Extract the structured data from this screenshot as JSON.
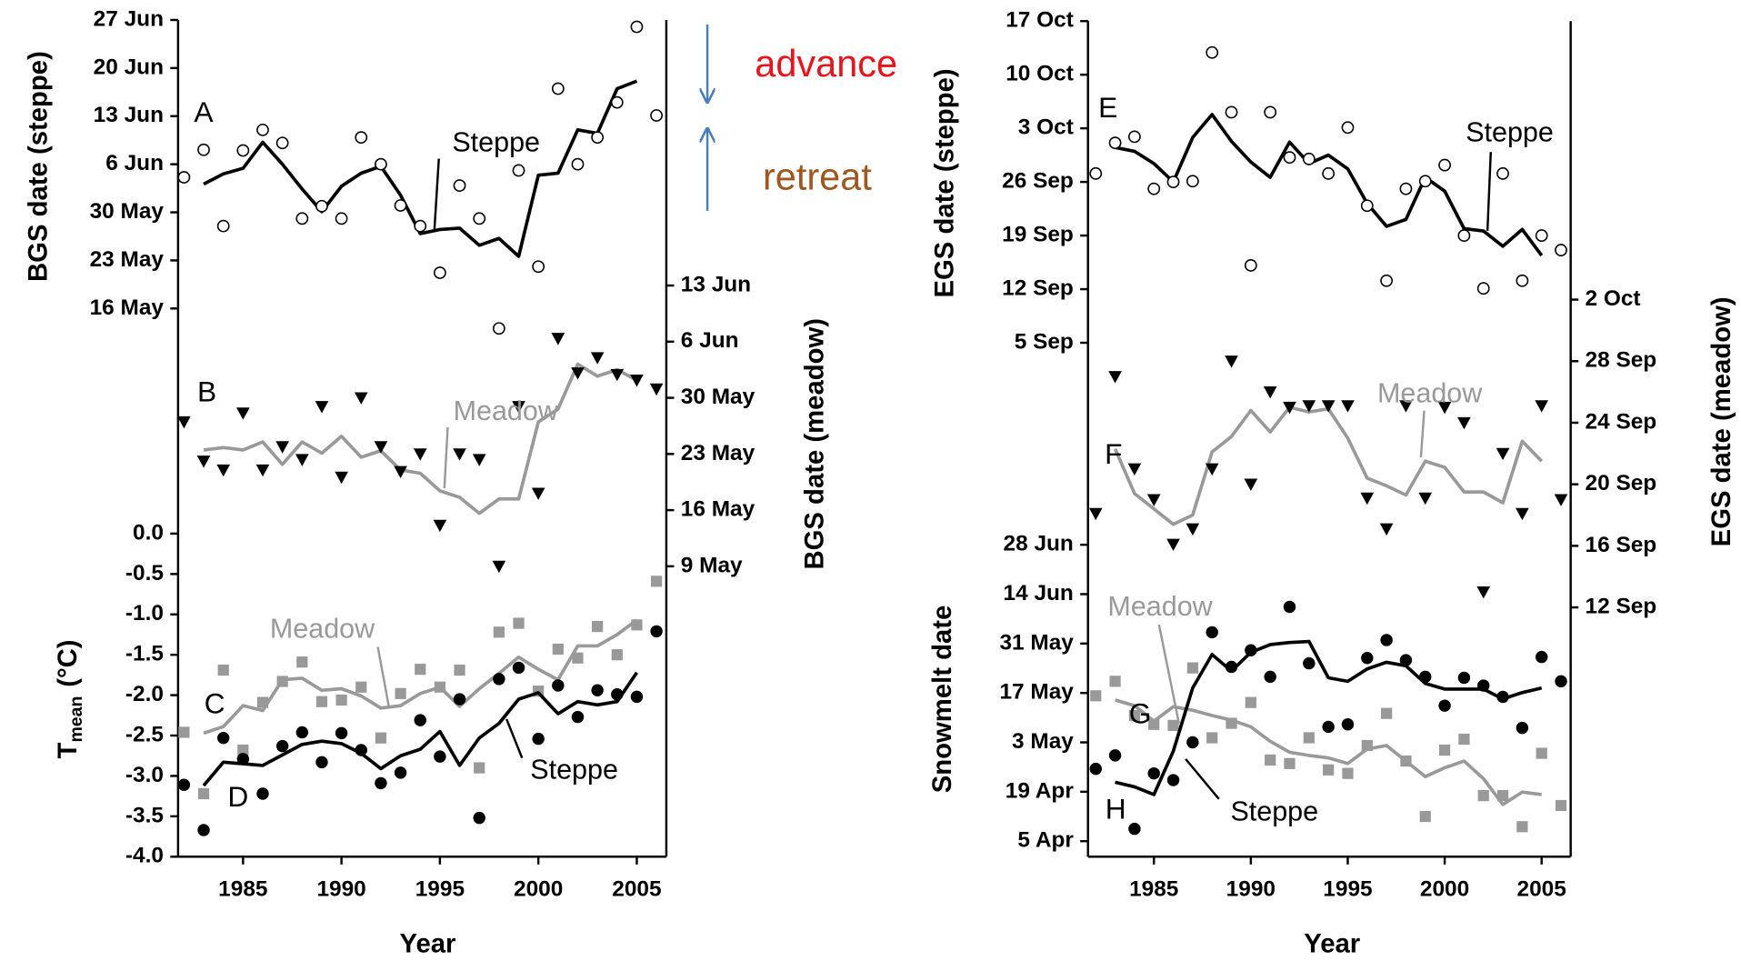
{
  "chart_data": [
    {
      "type": "line",
      "xlabel": "Year",
      "xlim": [
        1981.7,
        2006.5
      ],
      "xticks": [
        1985,
        1990,
        1995,
        2000,
        2005
      ],
      "x": [
        1982,
        1983,
        1984,
        1985,
        1986,
        1987,
        1988,
        1989,
        1990,
        1991,
        1992,
        1993,
        1994,
        1995,
        1996,
        1997,
        1998,
        1999,
        2000,
        2001,
        2002,
        2003,
        2004,
        2005,
        2006
      ],
      "axes": [
        {
          "side": "left",
          "label": "BGS date (steppe)",
          "ylim": [
            56.2,
            178
          ],
          "yticks": [
            {
              "value": 178,
              "label": "27 Jun"
            },
            {
              "value": 171,
              "label": "20 Jun"
            },
            {
              "value": 164,
              "label": "13 Jun"
            },
            {
              "value": 157,
              "label": "6 Jun"
            },
            {
              "value": 150,
              "label": "30 May"
            },
            {
              "value": 143,
              "label": "23 May"
            },
            {
              "value": 136,
              "label": "16 May"
            }
          ]
        },
        {
          "side": "right",
          "label": "BGS date (meadow)",
          "ylim": [
            92.8,
            197.1
          ],
          "yticks": [
            {
              "value": 164,
              "label": "13 Jun"
            },
            {
              "value": 157,
              "label": "6 Jun"
            },
            {
              "value": 150,
              "label": "30 May"
            },
            {
              "value": 143,
              "label": "23 May"
            },
            {
              "value": 136,
              "label": "16 May"
            },
            {
              "value": 129,
              "label": "9 May"
            }
          ]
        },
        {
          "side": "left",
          "label": "T",
          "label_sub": "mean",
          "label_unit": "(°C)",
          "ylim": [
            -4,
            6.36
          ],
          "yticks": [
            {
              "value": 0,
              "label": "0.0"
            },
            -0.5,
            {
              "value": -1,
              "label": "-1.0"
            },
            -1.5,
            {
              "value": -2,
              "label": "-2.0"
            },
            -2.5,
            {
              "value": -3,
              "label": "-3.0"
            },
            -3.5,
            {
              "value": -4,
              "label": "-4.0"
            }
          ]
        }
      ],
      "series": [
        {
          "label": "A",
          "name": "Steppe",
          "axis": 0,
          "marker": "open-circle",
          "marker_color": "#000000",
          "line_color": "#000000",
          "points": [
            155.1,
            159.1,
            148.0,
            159.0,
            162.0,
            160.1,
            149.1,
            150.9,
            149.1,
            160.9,
            157.0,
            151.0,
            148.0,
            141.2,
            153.9,
            149.1,
            133.1,
            156.1,
            142.1,
            168.0,
            157.0,
            160.9,
            166.0,
            177.0,
            164.1
          ],
          "line": [
            null,
            154.1,
            155.6,
            156.4,
            160.2,
            157.0,
            153.4,
            150.1,
            153.8,
            155.7,
            156.7,
            152.5,
            146.9,
            147.5,
            147.7,
            145.2,
            146.2,
            143.6,
            155.4,
            155.7,
            162.0,
            161.5,
            168.0,
            169.1,
            null
          ]
        },
        {
          "label": "B",
          "name": "Meadow",
          "axis": 1,
          "marker": "triangle",
          "marker_color": "#000000",
          "line_color": "#999999",
          "points": [
            147.0,
            142.1,
            141.0,
            148.1,
            141.0,
            143.9,
            142.3,
            148.9,
            140.1,
            150.0,
            143.9,
            140.8,
            143.0,
            134.1,
            143.0,
            142.3,
            129.0,
            148.9,
            138.1,
            157.4,
            153.1,
            155.0,
            152.9,
            152.2,
            151.1
          ],
          "line": [
            null,
            143.5,
            143.8,
            143.5,
            144.5,
            141.7,
            144.5,
            143.1,
            145.2,
            142.6,
            143.4,
            141.0,
            140.6,
            138.4,
            137.6,
            135.6,
            137.4,
            137.4,
            147.0,
            148.6,
            154.2,
            152.7,
            153.5,
            152.2,
            null
          ]
        },
        {
          "label": "C",
          "name": "Meadow",
          "axis": 2,
          "marker": "square",
          "marker_color": "#999999",
          "line_color": "#999999",
          "points": [
            -2.46,
            -3.22,
            -1.69,
            -2.68,
            -2.09,
            -1.83,
            -1.59,
            -2.08,
            -2.06,
            -1.9,
            -2.53,
            -1.98,
            -1.68,
            -1.9,
            -1.69,
            -2.9,
            -1.22,
            -1.11,
            -1.95,
            -1.43,
            -1.54,
            -1.15,
            -1.5,
            -1.13,
            -0.59
          ],
          "line": [
            null,
            -2.47,
            -2.39,
            -2.13,
            -2.19,
            -1.81,
            -1.79,
            -1.94,
            -1.92,
            -2.01,
            -2.16,
            -2.13,
            -1.98,
            -1.9,
            -2.14,
            -1.92,
            -1.73,
            -1.53,
            -1.68,
            -1.81,
            -1.39,
            -1.39,
            -1.25,
            -1.07,
            null
          ]
        },
        {
          "label": "D",
          "name": "Steppe",
          "axis": 2,
          "marker": "circle",
          "marker_color": "#000000",
          "line_color": "#000000",
          "points": [
            -3.11,
            -3.67,
            -2.53,
            -2.79,
            -3.22,
            -2.63,
            -2.46,
            -2.83,
            -2.47,
            -2.68,
            -3.09,
            -2.96,
            -2.31,
            -2.76,
            -2.05,
            -3.52,
            -1.8,
            -1.66,
            -2.54,
            -1.88,
            -2.27,
            -1.94,
            -1.99,
            -2.02,
            -1.21
          ],
          "line": [
            null,
            -3.12,
            -2.83,
            -2.85,
            -2.87,
            -2.74,
            -2.61,
            -2.57,
            -2.6,
            -2.72,
            -2.91,
            -2.75,
            -2.67,
            -2.45,
            -2.87,
            -2.53,
            -2.35,
            -2.05,
            -1.97,
            -2.23,
            -2.08,
            -2.12,
            -2.08,
            -1.72,
            null
          ]
        }
      ],
      "annotations": [
        {
          "text": "advance",
          "color": "#e8141c"
        },
        {
          "text": "retreat",
          "color": "#a0561e"
        }
      ]
    },
    {
      "type": "line",
      "xlabel": "Year",
      "xlim": [
        1981.6,
        2006.5
      ],
      "xticks": [
        1985,
        1990,
        1995,
        2000,
        2005
      ],
      "x": [
        1982,
        1983,
        1984,
        1985,
        1986,
        1987,
        1988,
        1989,
        1990,
        1991,
        1992,
        1993,
        1994,
        1995,
        1996,
        1997,
        1998,
        1999,
        2000,
        2001,
        2002,
        2003,
        2004,
        2005,
        2006
      ],
      "axes": [
        {
          "side": "left",
          "label": "EGS date (steppe)",
          "ylim": [
            180.9,
            290
          ],
          "yticks": [
            {
              "value": 290,
              "label": "17 Oct"
            },
            {
              "value": 283,
              "label": "10 Oct"
            },
            {
              "value": 276,
              "label": "3 Oct"
            },
            {
              "value": 269,
              "label": "26 Sep"
            },
            {
              "value": 262,
              "label": "19 Sep"
            },
            {
              "value": 255,
              "label": "12 Sep"
            },
            {
              "value": 248,
              "label": "5 Sep"
            }
          ]
        },
        {
          "side": "right",
          "label": "EGS date (meadow)",
          "ylim": [
            238.8,
            293.1
          ],
          "yticks": [
            {
              "value": 275,
              "label": "2 Oct"
            },
            {
              "value": 271,
              "label": "28 Sep"
            },
            {
              "value": 267,
              "label": "24 Sep"
            },
            {
              "value": 263,
              "label": "20 Sep"
            },
            {
              "value": 259,
              "label": "16 Sep"
            },
            {
              "value": 255,
              "label": "12 Sep"
            }
          ]
        },
        {
          "side": "left",
          "label": "Snowmelt date",
          "ylim": [
            90.6,
            327.4
          ],
          "yticks": [
            {
              "value": 179,
              "label": "28 Jun"
            },
            {
              "value": 165,
              "label": "14 Jun"
            },
            {
              "value": 151,
              "label": "31 May"
            },
            {
              "value": 137,
              "label": "17 May"
            },
            {
              "value": 123,
              "label": "3 May"
            },
            {
              "value": 109,
              "label": "19 Apr"
            },
            {
              "value": 95,
              "label": "5 Apr"
            }
          ]
        }
      ],
      "series": [
        {
          "label": "E",
          "name": "Steppe",
          "axis": 0,
          "marker": "open-circle",
          "marker_color": "#000000",
          "line_color": "#000000",
          "points": [
            270.1,
            274.1,
            274.9,
            268.1,
            269.0,
            269.1,
            285.9,
            278.1,
            258.1,
            278.1,
            272.2,
            272.0,
            270.1,
            276.1,
            265.9,
            256.1,
            268.1,
            269.1,
            271.2,
            262.0,
            255.1,
            270.1,
            256.1,
            262.0,
            260.1
          ],
          "line": [
            null,
            273.5,
            273.0,
            271.4,
            269.0,
            274.8,
            277.8,
            274.3,
            271.6,
            269.6,
            274.2,
            271.4,
            272.5,
            270.7,
            266.2,
            263.2,
            264.1,
            269.6,
            267.8,
            262.9,
            262.6,
            260.6,
            262.8,
            259.4,
            null
          ]
        },
        {
          "label": "F",
          "name": "Meadow",
          "axis": 1,
          "marker": "triangle",
          "marker_color": "#000000",
          "line_color": "#999999",
          "points": [
            261.1,
            270.0,
            264.0,
            262.0,
            259.1,
            260.1,
            264.0,
            271.0,
            263.0,
            269.0,
            268.0,
            268.1,
            268.1,
            268.1,
            262.1,
            260.1,
            268.1,
            262.1,
            268.0,
            267.0,
            256.0,
            265.0,
            261.1,
            268.1,
            262.0
          ],
          "line": [
            null,
            265.3,
            262.4,
            261.4,
            260.4,
            261.0,
            265.1,
            266.1,
            267.8,
            266.4,
            268.0,
            267.7,
            267.9,
            266.0,
            263.4,
            262.9,
            262.3,
            264.5,
            264.1,
            262.5,
            262.5,
            261.8,
            265.8,
            264.5,
            null
          ]
        },
        {
          "label": "G",
          "name": "Meadow",
          "axis": 2,
          "marker": "square",
          "marker_color": "#999999",
          "line_color": "#999999",
          "points": [
            136.2,
            140.3,
            130.6,
            128.1,
            127.8,
            144.1,
            124.3,
            128.4,
            134.3,
            118.0,
            117.0,
            124.3,
            115.2,
            114.2,
            122.1,
            131.2,
            117.7,
            102.0,
            120.8,
            123.9,
            107.9,
            107.9,
            99.1,
            119.9,
            105.1
          ],
          "line": [
            null,
            135.0,
            133.4,
            129.0,
            133.1,
            132.1,
            130.6,
            129.3,
            127.4,
            123.3,
            120.2,
            119.3,
            118.6,
            117.0,
            121.1,
            122.1,
            117.7,
            113.3,
            115.8,
            117.7,
            112.7,
            105.4,
            108.9,
            108.2,
            null
          ]
        },
        {
          "label": "H",
          "name": "Steppe",
          "axis": 2,
          "marker": "circle",
          "marker_color": "#000000",
          "line_color": "#000000",
          "points": [
            115.5,
            119.3,
            98.5,
            114.2,
            112.3,
            123.0,
            154.2,
            144.4,
            149.1,
            141.6,
            161.4,
            145.4,
            127.4,
            128.1,
            146.9,
            152.0,
            146.3,
            141.6,
            133.4,
            141.3,
            139.1,
            135.9,
            127.1,
            147.2,
            140.3
          ],
          "line": [
            null,
            111.7,
            110.4,
            108.2,
            120.5,
            138.4,
            147.9,
            143.2,
            148.5,
            150.7,
            151.3,
            151.6,
            141.3,
            140.3,
            143.8,
            145.7,
            144.7,
            139.7,
            138.1,
            138.1,
            138.1,
            135.3,
            137.1,
            138.4,
            null
          ]
        }
      ]
    }
  ]
}
